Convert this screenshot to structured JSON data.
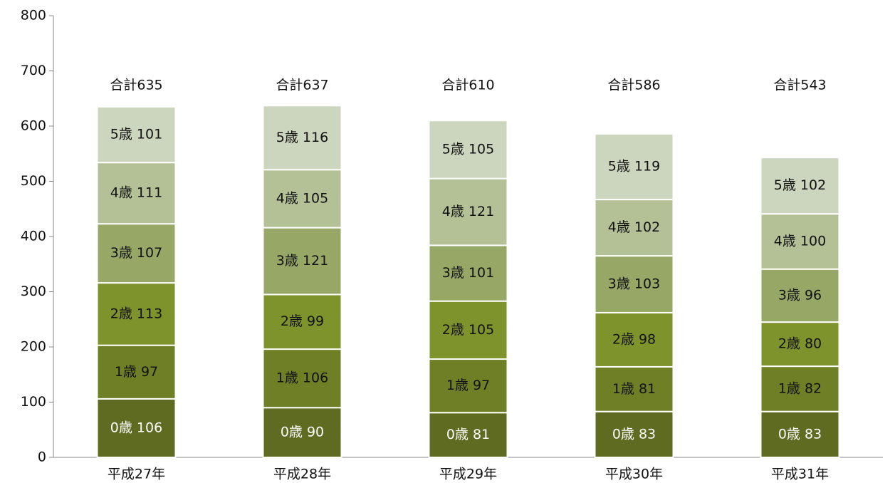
{
  "chart_data": {
    "type": "stacked_bar",
    "categories": [
      "平成27年",
      "平成28年",
      "平成29年",
      "平成30年",
      "平成31年"
    ],
    "series": [
      {
        "color": "#5f6b20",
        "label_color": "#ffffff",
        "values": [
          106,
          90,
          81,
          83,
          83
        ],
        "value_labels": [
          "0歳 106",
          "0歳 90",
          "0歳 81",
          "0歳 83",
          "0歳 83"
        ]
      },
      {
        "color": "#6e7f26",
        "label_color": "#111111",
        "values": [
          97,
          106,
          97,
          81,
          82
        ],
        "value_labels": [
          "1歳 97",
          "1歳 106",
          "1歳 97",
          "1歳 81",
          "1歳 82"
        ]
      },
      {
        "color": "#7e932b",
        "label_color": "#111111",
        "values": [
          113,
          99,
          105,
          98,
          80
        ],
        "value_labels": [
          "2歳 113",
          "2歳 99",
          "2歳 105",
          "2歳 98",
          "2歳 80"
        ]
      },
      {
        "color": "#97a866",
        "label_color": "#111111",
        "values": [
          107,
          121,
          101,
          103,
          96
        ],
        "value_labels": [
          "3歳 107",
          "3歳 121",
          "3歳 101",
          "3歳 103",
          "3歳 96"
        ]
      },
      {
        "color": "#b4c196",
        "label_color": "#111111",
        "values": [
          111,
          105,
          121,
          102,
          100
        ],
        "value_labels": [
          "4歳 111",
          "4歳 105",
          "4歳 121",
          "4歳 102",
          "4歳 100"
        ]
      },
      {
        "color": "#ccd5bd",
        "label_color": "#111111",
        "values": [
          101,
          116,
          105,
          119,
          102
        ],
        "value_labels": [
          "5歳 101",
          "5歳 116",
          "5歳 105",
          "5歳 119",
          "5歳 102"
        ]
      }
    ],
    "annotations": [
      "合計635",
      "合計637",
      "合計610",
      "合計586",
      "合計543"
    ],
    "ylim": [
      0,
      800
    ],
    "yticks": [
      0,
      100,
      200,
      300,
      400,
      500,
      600,
      700,
      800
    ],
    "grid": false
  }
}
